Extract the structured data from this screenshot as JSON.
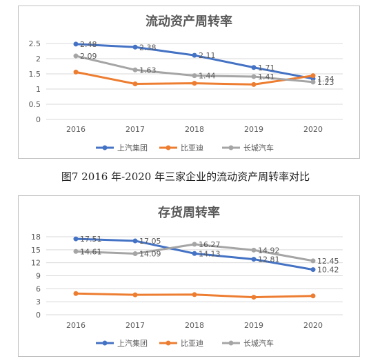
{
  "caption": "图7 2016 年-2020 年三家企业的流动资产周转率对比",
  "colors": {
    "上汽集团": "#4472c4",
    "比亚迪": "#ed7d31",
    "长城汽车": "#a5a5a5",
    "grid": "#d9d9d9",
    "text": "#595959"
  },
  "chart_data": [
    {
      "type": "line",
      "title": "流动资产周转率",
      "categories": [
        "2016",
        "2017",
        "2018",
        "2019",
        "2020"
      ],
      "ylim": [
        0,
        2.5
      ],
      "yticks": [
        "0",
        "0.5",
        "1",
        "1.5",
        "2",
        "2.5"
      ],
      "grid": true,
      "legend": "bottom",
      "series": [
        {
          "name": "上汽集团",
          "values": [
            2.48,
            2.38,
            2.11,
            1.71,
            1.34
          ],
          "labels": [
            "2.48",
            "2.38",
            "2.11",
            "1.71",
            "1.34"
          ]
        },
        {
          "name": "比亚迪",
          "values": [
            1.56,
            1.17,
            1.19,
            1.15,
            1.44
          ],
          "labels": []
        },
        {
          "name": "长城汽车",
          "values": [
            2.09,
            1.63,
            1.44,
            1.41,
            1.23
          ],
          "labels": [
            "2.09",
            "1.63",
            "1.44",
            "1.41",
            "1.23"
          ]
        }
      ]
    },
    {
      "type": "line",
      "title": "存货周转率",
      "categories": [
        "2016",
        "2017",
        "2018",
        "2019",
        "2020"
      ],
      "ylim": [
        0,
        18
      ],
      "yticks": [
        "0",
        "3",
        "6",
        "9",
        "12",
        "15",
        "18"
      ],
      "grid": true,
      "legend": "bottom",
      "series": [
        {
          "name": "上汽集团",
          "values": [
            17.51,
            17.05,
            14.13,
            12.81,
            10.42
          ],
          "labels": [
            "17.51",
            "17.05",
            "14.13",
            "12.81",
            "10.42"
          ]
        },
        {
          "name": "比亚迪",
          "values": [
            4.9,
            4.6,
            4.65,
            4.05,
            4.35
          ],
          "labels": []
        },
        {
          "name": "长城汽车",
          "values": [
            14.61,
            14.09,
            16.27,
            14.92,
            12.45
          ],
          "labels": [
            "14.61",
            "14.09",
            "16.27",
            "14.92",
            "12.45"
          ]
        }
      ]
    }
  ]
}
